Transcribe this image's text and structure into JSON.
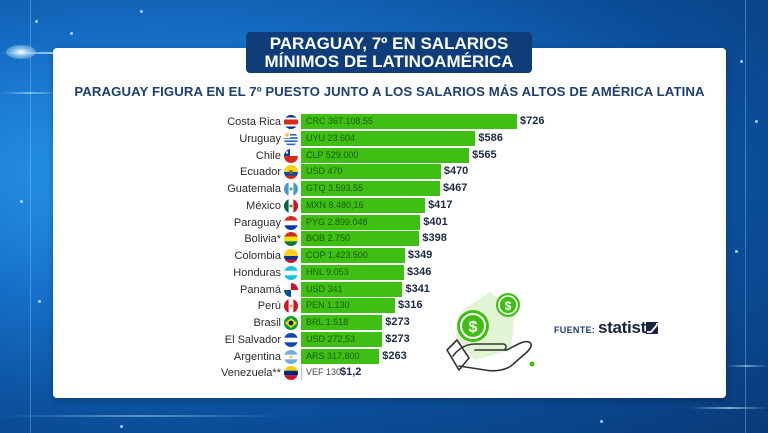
{
  "header": {
    "title_line1": "PARAGUAY, 7º EN SALARIOS",
    "title_line2": "MÍNIMOS DE LATINOAMÉRICA",
    "subtitle": "PARAGUAY FIGURA EN EL 7º PUESTO JUNTO A LOS SALARIOS MÁS ALTOS DE AMÉRICA LATINA"
  },
  "source": {
    "label": "FUENTE:",
    "brand": "statista"
  },
  "colors": {
    "bar": "#3fbf14",
    "title_bg": "#0f3d7a",
    "subtitle": "#1d3f73"
  },
  "chart_data": {
    "type": "bar",
    "orientation": "horizontal",
    "title": "PARAGUAY FIGURA EN EL 7º PUESTO JUNTO A LOS SALARIOS MÁS ALTOS DE AMÉRICA LATINA",
    "xlabel": "",
    "ylabel": "",
    "unit": "USD",
    "xlim": [
      0,
      726
    ],
    "grid": false,
    "categories": [
      "Costa Rica",
      "Uruguay",
      "Chile",
      "Ecuador",
      "Guatemala",
      "México",
      "Paraguay",
      "Bolivia*",
      "Colombia",
      "Honduras",
      "Panamá",
      "Perú",
      "Brasil",
      "El Salvador",
      "Argentina",
      "Venezuela**"
    ],
    "values": [
      726,
      586,
      565,
      470,
      467,
      417,
      401,
      398,
      349,
      346,
      341,
      316,
      273,
      273,
      263,
      1.2
    ],
    "value_labels": [
      "$726",
      "$586",
      "$565",
      "$470",
      "$467",
      "$417",
      "$401",
      "$398",
      "$349",
      "$346",
      "$341",
      "$316",
      "$273",
      "$273",
      "$263",
      "$1,2"
    ],
    "local_currency_labels": [
      "CRC 367.108,55",
      "UYU 23.604",
      "CLP 529.000",
      "USD 470",
      "GTQ 3.593,55",
      "MXN 8.480,16",
      "PYG 2.899.048",
      "BOB 2.750",
      "COP 1.423.500",
      "HNL 9.053",
      "USD 341",
      "PEN 1.130",
      "BRL 1.518",
      "USD 272,53",
      "ARS 317.800",
      "VEF 130"
    ],
    "flags": [
      "costa-rica",
      "uruguay",
      "chile",
      "ecuador",
      "guatemala",
      "mexico",
      "paraguay",
      "bolivia",
      "colombia",
      "honduras",
      "panama",
      "peru",
      "brazil",
      "el-salvador",
      "argentina",
      "venezuela"
    ]
  }
}
